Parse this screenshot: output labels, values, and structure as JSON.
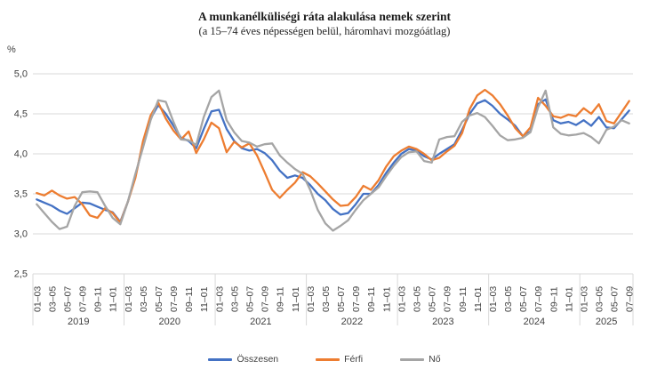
{
  "title": "A munkanélküliségi ráta alakulása nemek szerint",
  "subtitle": "(a 15–74 éves népességen belül, háromhavi mozgóátlag)",
  "y_axis": {
    "unit": "%",
    "ticks": [
      "5,0",
      "4,5",
      "4,0",
      "3,5",
      "3,0",
      "2,5"
    ],
    "tick_values": [
      5.0,
      4.5,
      4.0,
      3.5,
      3.0,
      2.5
    ],
    "min": 2.5,
    "max": 5.0
  },
  "x_axis": {
    "within_year_labels": [
      "01–03",
      "03–05",
      "05–07",
      "07–09",
      "09–11",
      "11–01"
    ],
    "year_groups": [
      {
        "year": "2019",
        "points": 12
      },
      {
        "year": "2020",
        "points": 12
      },
      {
        "year": "2021",
        "points": 12
      },
      {
        "year": "2022",
        "points": 12
      },
      {
        "year": "2023",
        "points": 12
      },
      {
        "year": "2024",
        "points": 12
      },
      {
        "year": "2025",
        "points": 7
      }
    ]
  },
  "legend": [
    {
      "label": "Összesen",
      "color": "#4472C4"
    },
    {
      "label": "Férfi",
      "color": "#ED7D31"
    },
    {
      "label": "Nő",
      "color": "#A5A5A5"
    }
  ],
  "colors": {
    "gridline": "#D9D9D9",
    "axis_text": "#404040",
    "separator": "#D9D9D9"
  },
  "chart_data": {
    "type": "line",
    "title": "A munkanélküliségi ráta alakulása nemek szerint",
    "subtitle": "(a 15–74 éves népességen belül, háromhavi mozgóátlag)",
    "ylabel": "%",
    "ylim": [
      2.5,
      5.0
    ],
    "grid": true,
    "legend_position": "bottom",
    "x_description": "monthly 3-month moving windows, 2019-01–03 to 2025-07–09, labeled every second window",
    "series": [
      {
        "name": "Összesen",
        "color": "#4472C4",
        "values": [
          3.43,
          3.39,
          3.35,
          3.29,
          3.25,
          3.32,
          3.39,
          3.38,
          3.34,
          3.3,
          3.27,
          3.15,
          3.4,
          3.72,
          4.12,
          4.44,
          4.61,
          4.5,
          4.35,
          4.2,
          4.16,
          4.07,
          4.31,
          4.53,
          4.55,
          4.31,
          4.16,
          4.07,
          4.04,
          4.06,
          4.01,
          3.92,
          3.79,
          3.7,
          3.73,
          3.7,
          3.61,
          3.5,
          3.42,
          3.31,
          3.24,
          3.26,
          3.37,
          3.5,
          3.5,
          3.61,
          3.76,
          3.89,
          4.0,
          4.06,
          4.04,
          3.97,
          3.93,
          4.0,
          4.06,
          4.12,
          4.3,
          4.5,
          4.63,
          4.67,
          4.6,
          4.5,
          4.43,
          4.35,
          4.22,
          4.28,
          4.62,
          4.68,
          4.42,
          4.38,
          4.4,
          4.36,
          4.42,
          4.35,
          4.46,
          4.33,
          4.32,
          4.43,
          4.54
        ]
      },
      {
        "name": "Férfi",
        "color": "#ED7D31",
        "values": [
          3.51,
          3.48,
          3.54,
          3.48,
          3.44,
          3.46,
          3.37,
          3.23,
          3.2,
          3.32,
          3.26,
          3.14,
          3.4,
          3.7,
          4.16,
          4.48,
          4.64,
          4.44,
          4.29,
          4.18,
          4.28,
          4.01,
          4.18,
          4.39,
          4.32,
          4.02,
          4.15,
          4.08,
          4.13,
          3.98,
          3.77,
          3.55,
          3.45,
          3.55,
          3.64,
          3.77,
          3.72,
          3.63,
          3.53,
          3.43,
          3.35,
          3.36,
          3.46,
          3.6,
          3.55,
          3.67,
          3.84,
          3.97,
          4.04,
          4.09,
          4.06,
          4.0,
          3.92,
          3.95,
          4.03,
          4.1,
          4.26,
          4.56,
          4.73,
          4.8,
          4.73,
          4.62,
          4.48,
          4.32,
          4.22,
          4.33,
          4.7,
          4.6,
          4.47,
          4.45,
          4.49,
          4.47,
          4.57,
          4.5,
          4.62,
          4.41,
          4.38,
          4.52,
          4.66
        ]
      },
      {
        "name": "Nő",
        "color": "#A5A5A5",
        "values": [
          3.37,
          3.26,
          3.15,
          3.06,
          3.09,
          3.35,
          3.52,
          3.53,
          3.52,
          3.35,
          3.2,
          3.12,
          3.4,
          3.75,
          4.08,
          4.42,
          4.67,
          4.65,
          4.4,
          4.18,
          4.17,
          4.11,
          4.46,
          4.71,
          4.79,
          4.42,
          4.27,
          4.16,
          4.14,
          4.09,
          4.12,
          4.13,
          3.98,
          3.89,
          3.81,
          3.75,
          3.55,
          3.3,
          3.13,
          3.04,
          3.1,
          3.17,
          3.3,
          3.42,
          3.5,
          3.58,
          3.72,
          3.85,
          3.96,
          4.02,
          4.03,
          3.91,
          3.89,
          4.18,
          4.21,
          4.22,
          4.4,
          4.48,
          4.51,
          4.46,
          4.35,
          4.23,
          4.17,
          4.18,
          4.2,
          4.27,
          4.58,
          4.79,
          4.33,
          4.25,
          4.23,
          4.24,
          4.26,
          4.21,
          4.13,
          4.3,
          4.34,
          4.42,
          4.38
        ]
      }
    ]
  }
}
